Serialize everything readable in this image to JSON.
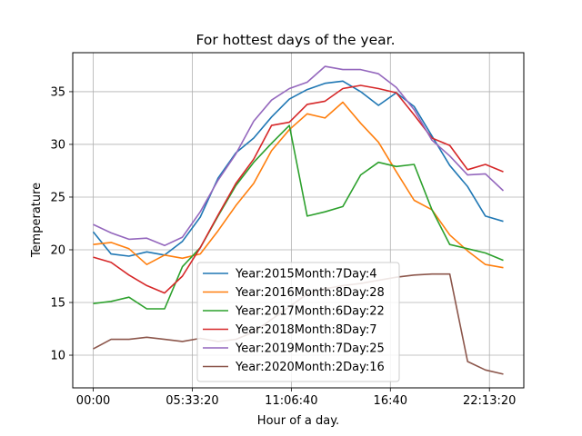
{
  "chart_data": {
    "type": "line",
    "title": "For hottest days of the year.",
    "xlabel": "Hour of a day.",
    "ylabel": "Temperature",
    "x_tick_labels": [
      "00:00",
      "05:33:20",
      "11:06:40",
      "16:40",
      "22:13:20"
    ],
    "x_tick_hours": [
      0,
      5.5556,
      11.1111,
      16.6667,
      22.2222
    ],
    "xlim": [
      -1.15,
      24.15
    ],
    "ylim": [
      6.9,
      38.7
    ],
    "y_ticks": [
      10,
      15,
      20,
      25,
      30,
      35
    ],
    "grid": true,
    "legend_position": "lower-center",
    "x": [
      0,
      1,
      2,
      3,
      4,
      5,
      6,
      7,
      8,
      9,
      10,
      11,
      12,
      13,
      14,
      15,
      16,
      17,
      18,
      19,
      20,
      21,
      22,
      23
    ],
    "series": [
      {
        "name": "Year:2015Month:7Day:4",
        "color": "#1f77b4",
        "values": [
          21.7,
          19.6,
          19.4,
          19.8,
          19.5,
          20.8,
          23.1,
          26.8,
          29.2,
          30.6,
          32.6,
          34.3,
          35.2,
          35.8,
          36.0,
          35.0,
          33.7,
          34.9,
          33.6,
          30.8,
          28.0,
          26.0,
          23.2,
          22.7
        ]
      },
      {
        "name": "Year:2016Month:8Day:28",
        "color": "#ff7f0e",
        "values": [
          20.5,
          20.7,
          20.1,
          18.6,
          19.5,
          19.2,
          19.6,
          21.8,
          24.2,
          26.3,
          29.4,
          31.4,
          32.9,
          32.5,
          34.0,
          32.0,
          30.2,
          27.4,
          24.7,
          23.8,
          21.4,
          19.9,
          18.6,
          18.3
        ]
      },
      {
        "name": "Year:2017Month:6Day:22",
        "color": "#2ca02c",
        "values": [
          14.9,
          15.1,
          15.5,
          14.4,
          14.4,
          18.4,
          20.2,
          23.2,
          26.1,
          28.3,
          30.1,
          31.8,
          23.2,
          23.6,
          24.1,
          27.1,
          28.3,
          27.9,
          28.1,
          23.8,
          20.5,
          20.1,
          19.7,
          19.0
        ]
      },
      {
        "name": "Year:2018Month:8Day:7",
        "color": "#d62728",
        "values": [
          19.3,
          18.8,
          17.6,
          16.6,
          15.9,
          17.5,
          20.2,
          23.3,
          26.3,
          28.6,
          31.8,
          32.1,
          33.8,
          34.1,
          35.3,
          35.6,
          35.3,
          34.9,
          32.8,
          30.6,
          29.9,
          27.6,
          28.1,
          27.4
        ]
      },
      {
        "name": "Year:2019Month:7Day:25",
        "color": "#9467bd",
        "values": [
          22.4,
          21.6,
          21.0,
          21.1,
          20.4,
          21.2,
          23.6,
          26.6,
          29.1,
          32.2,
          34.2,
          35.3,
          35.9,
          37.4,
          37.1,
          37.1,
          36.7,
          35.4,
          33.3,
          30.4,
          28.9,
          27.1,
          27.2,
          25.6
        ]
      },
      {
        "name": "Year:2020Month:2Day:16",
        "color": "#8c564b",
        "values": [
          10.6,
          11.5,
          11.5,
          11.7,
          11.5,
          11.3,
          11.6,
          11.3,
          11.5,
          12.2,
          13.4,
          14.6,
          15.8,
          16.3,
          16.6,
          16.8,
          17.1,
          17.4,
          17.6,
          17.7,
          17.7,
          9.4,
          8.6,
          8.2
        ]
      }
    ]
  }
}
